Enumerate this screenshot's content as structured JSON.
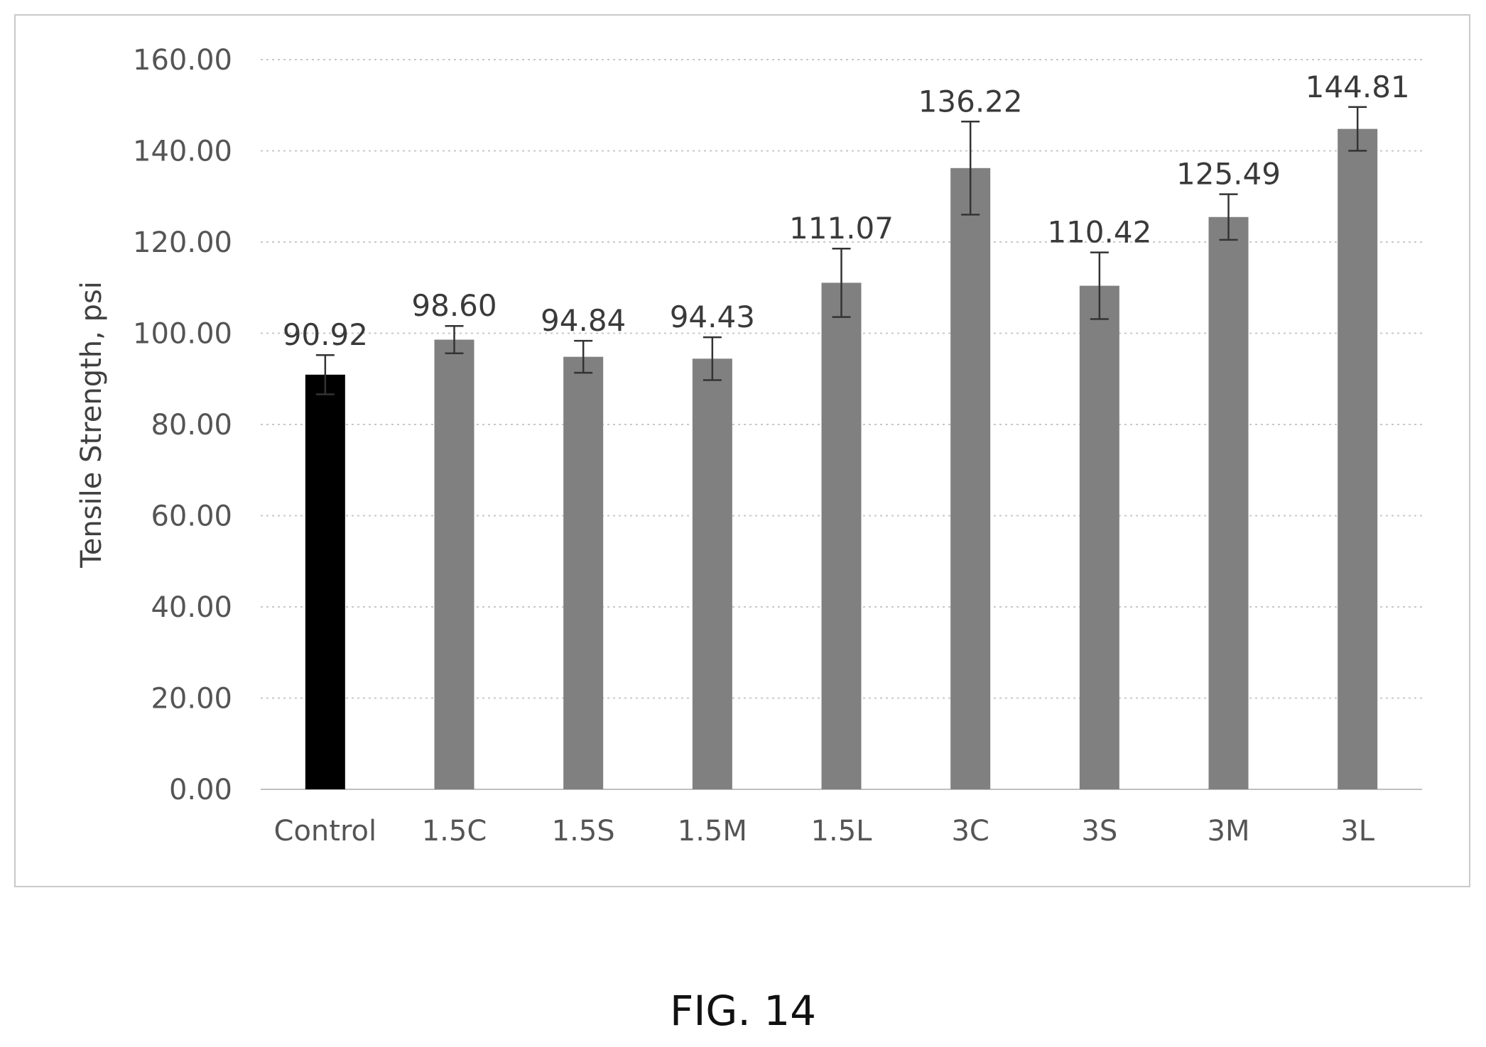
{
  "figure_caption": "FIG. 14",
  "chart_data": {
    "type": "bar",
    "title": "",
    "xlabel": "",
    "ylabel": "Tensile Strength, psi",
    "ylim": [
      0,
      160
    ],
    "yticks": [
      "0.00",
      "20.00",
      "40.00",
      "60.00",
      "80.00",
      "100.00",
      "120.00",
      "140.00",
      "160.00"
    ],
    "grid": true,
    "categories": [
      "Control",
      "1.5C",
      "1.5S",
      "1.5M",
      "1.5L",
      "3C",
      "3S",
      "3M",
      "3L"
    ],
    "values": [
      90.92,
      98.6,
      94.84,
      94.43,
      111.07,
      136.22,
      110.42,
      125.49,
      144.81
    ],
    "data_labels": [
      "90.92",
      "98.60",
      "94.84",
      "94.43",
      "111.07",
      "136.22",
      "110.42",
      "125.49",
      "144.81"
    ],
    "error_bars": [
      4.3,
      3.0,
      3.5,
      4.7,
      7.5,
      10.2,
      7.3,
      5.0,
      4.8
    ],
    "bar_colors": [
      "#000000",
      "#808080",
      "#808080",
      "#808080",
      "#808080",
      "#808080",
      "#808080",
      "#808080",
      "#808080"
    ]
  }
}
